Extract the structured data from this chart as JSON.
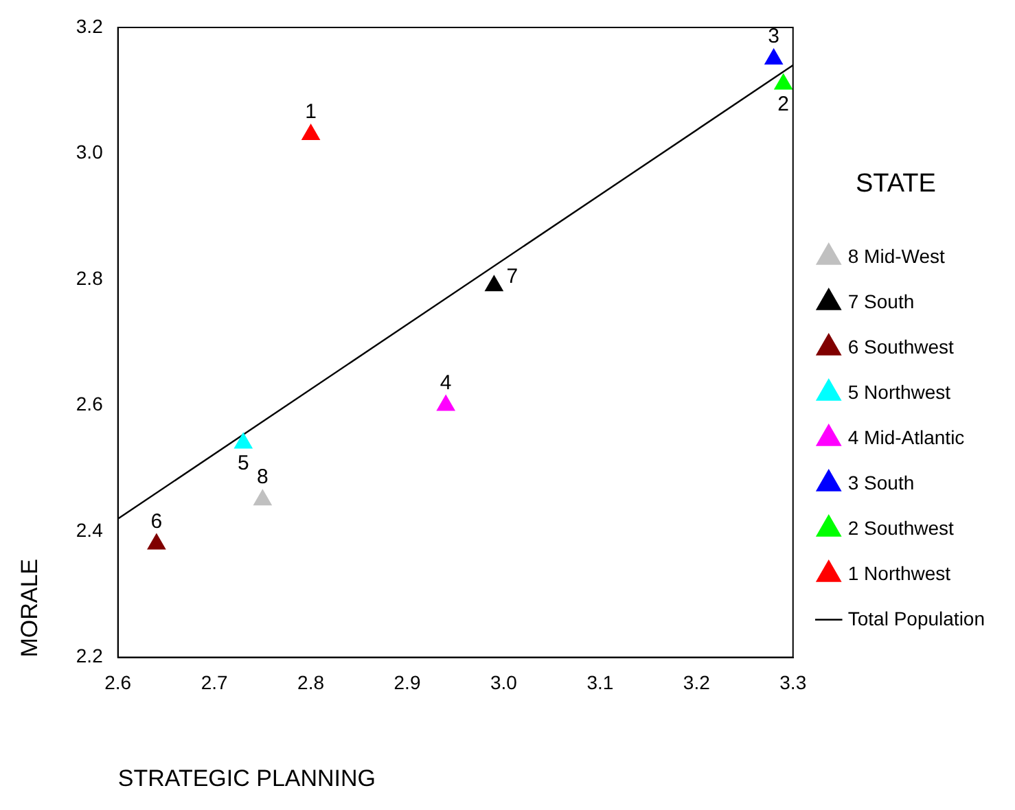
{
  "chart_data": {
    "type": "scatter",
    "xlabel": "STRATEGIC PLANNING",
    "ylabel": "MORALE",
    "legend_title": "STATE",
    "legend": "right",
    "grid": false,
    "marker": "triangle",
    "xlim": [
      2.6,
      3.3
    ],
    "xticks": [
      2.6,
      2.7,
      2.8,
      2.9,
      {
        "value": 3.0,
        "label": "3.0"
      },
      3.1,
      3.2,
      3.3
    ],
    "ylim": [
      2.2,
      3.2
    ],
    "yticks": [
      2.2,
      2.4,
      2.6,
      2.8,
      {
        "value": 3.0,
        "label": "3.0"
      },
      3.2
    ],
    "series": [
      {
        "name": "8 Mid-West",
        "color": "#c0c0c0",
        "x": [
          2.75
        ],
        "values": [
          2.45
        ]
      },
      {
        "name": "7 South",
        "color": "#000000",
        "x": [
          2.99
        ],
        "values": [
          2.79
        ]
      },
      {
        "name": "6 Southwest",
        "color": "#800000",
        "x": [
          2.64
        ],
        "values": [
          2.38
        ]
      },
      {
        "name": "5 Northwest",
        "color": "#00ffff",
        "x": [
          2.73
        ],
        "values": [
          2.54
        ]
      },
      {
        "name": "4 Mid-Atlantic",
        "color": "#ff00ff",
        "x": [
          2.94
        ],
        "values": [
          2.6
        ]
      },
      {
        "name": "3 South",
        "color": "#0000ff",
        "x": [
          3.28
        ],
        "values": [
          3.15
        ]
      },
      {
        "name": "2 Southwest",
        "color": "#00ff00",
        "x": [
          3.29
        ],
        "values": [
          3.11
        ]
      },
      {
        "name": "1 Northwest",
        "color": "#ff0000",
        "x": [
          2.8
        ],
        "values": [
          3.03
        ]
      },
      {
        "name": "Total Population",
        "type": "line",
        "marker": "none",
        "color": "#000000",
        "x": [
          2.6,
          3.3
        ],
        "values": [
          2.42,
          3.14
        ]
      }
    ],
    "annotations": [
      {
        "text": "8",
        "x": 2.75,
        "y": 2.45
      },
      {
        "text": "7",
        "x": 2.99,
        "y": 2.79
      },
      {
        "text": "6",
        "x": 2.64,
        "y": 2.38
      },
      {
        "text": "5",
        "x": 2.73,
        "y": 2.54
      },
      {
        "text": "4",
        "x": 2.94,
        "y": 2.6
      },
      {
        "text": "3",
        "x": 3.28,
        "y": 3.15
      },
      {
        "text": "2",
        "x": 3.29,
        "y": 3.11
      },
      {
        "text": "1",
        "x": 2.8,
        "y": 3.03
      }
    ]
  }
}
